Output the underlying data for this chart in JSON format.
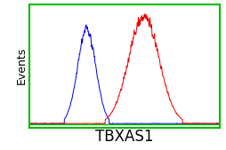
{
  "title": "",
  "xlabel": "TBXAS1",
  "ylabel": "Events",
  "background_color": "#ffffff",
  "border_color": "#00cc00",
  "blue_peak": 0.3,
  "blue_std": 0.048,
  "red_peak": 0.6,
  "red_std": 0.08,
  "blue_color": "#0000ee",
  "red_color": "#ee0000",
  "green_color": "#00bb00",
  "figsize": [
    2.55,
    1.69
  ],
  "dpi": 100,
  "xlabel_fontsize": 12,
  "ylabel_fontsize": 9,
  "noise_seed": 42
}
